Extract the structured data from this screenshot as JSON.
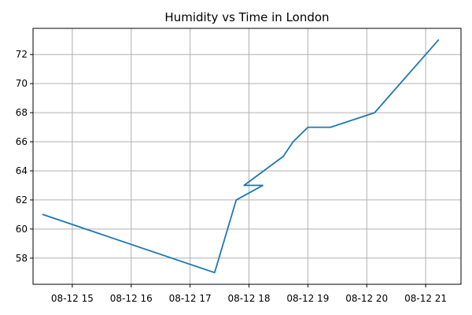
{
  "chart_data": {
    "type": "line",
    "title": "Humidity vs Time in London",
    "xlabel": "",
    "ylabel": "",
    "x_tick_labels": [
      "08-12 15",
      "08-12 16",
      "08-12 17",
      "08-12 18",
      "08-12 19",
      "08-12 20",
      "08-12 21"
    ],
    "x_tick_values": [
      15,
      16,
      17,
      18,
      19,
      20,
      21
    ],
    "y_ticks": [
      58,
      60,
      62,
      64,
      66,
      68,
      70,
      72
    ],
    "xlim": [
      "08-12 14:20",
      "08-12 21:36"
    ],
    "ylim": [
      56.2,
      73.8
    ],
    "grid": true,
    "series": [
      {
        "color": "#1f77b4",
        "x": [
          "08-12 14:30",
          "08-12 17:25",
          "08-12 17:47",
          "08-12 18:14",
          "08-12 17:55",
          "08-12 18:35",
          "08-12 18:45",
          "08-12 19:00",
          "08-12 19:23",
          "08-12 20:08",
          "08-12 21:13"
        ],
        "values": [
          61,
          57,
          62,
          63,
          63,
          65,
          66,
          67,
          67,
          68,
          73
        ]
      }
    ]
  }
}
